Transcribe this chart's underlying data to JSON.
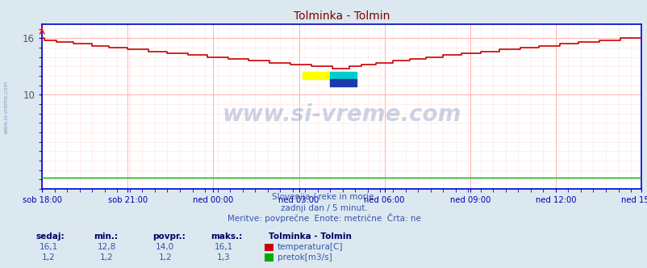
{
  "title": "Tolminka - Tolmin",
  "title_color": "#800000",
  "bg_color": "#dce8f0",
  "plot_bg_color": "#ffffff",
  "grid_color_major": "#ffb0b0",
  "grid_color_minor": "#ffe0e0",
  "border_color": "#0000cc",
  "x_label_color": "#0000aa",
  "y_label_color": "#555555",
  "temp_color": "#cc0000",
  "flow_color": "#00aa00",
  "watermark_color": "#1a3a8a",
  "watermark_text": "www.si-vreme.com",
  "subtitle1": "Slovenija / reke in morje.",
  "subtitle2": "zadnji dan / 5 minut.",
  "subtitle3": "Meritve: povprečne  Enote: metrične  Črta: ne",
  "subtitle_color": "#3355aa",
  "footer_header_color": "#000066",
  "footer_station": "Tolminka - Tolmin",
  "footer_label1": "temperatura[C]",
  "footer_label2": "pretok[m3/s]",
  "xtick_labels": [
    "sob 18:00",
    "sob 21:00",
    "ned 00:00",
    "ned 03:00",
    "ned 06:00",
    "ned 09:00",
    "ned 12:00",
    "ned 15:00"
  ],
  "ylim": [
    0,
    17.5
  ],
  "xlim": [
    0,
    287
  ],
  "n_points": 288,
  "sidebar_text": "www.si-vreme.com",
  "sidebar_color": "#4488cc"
}
